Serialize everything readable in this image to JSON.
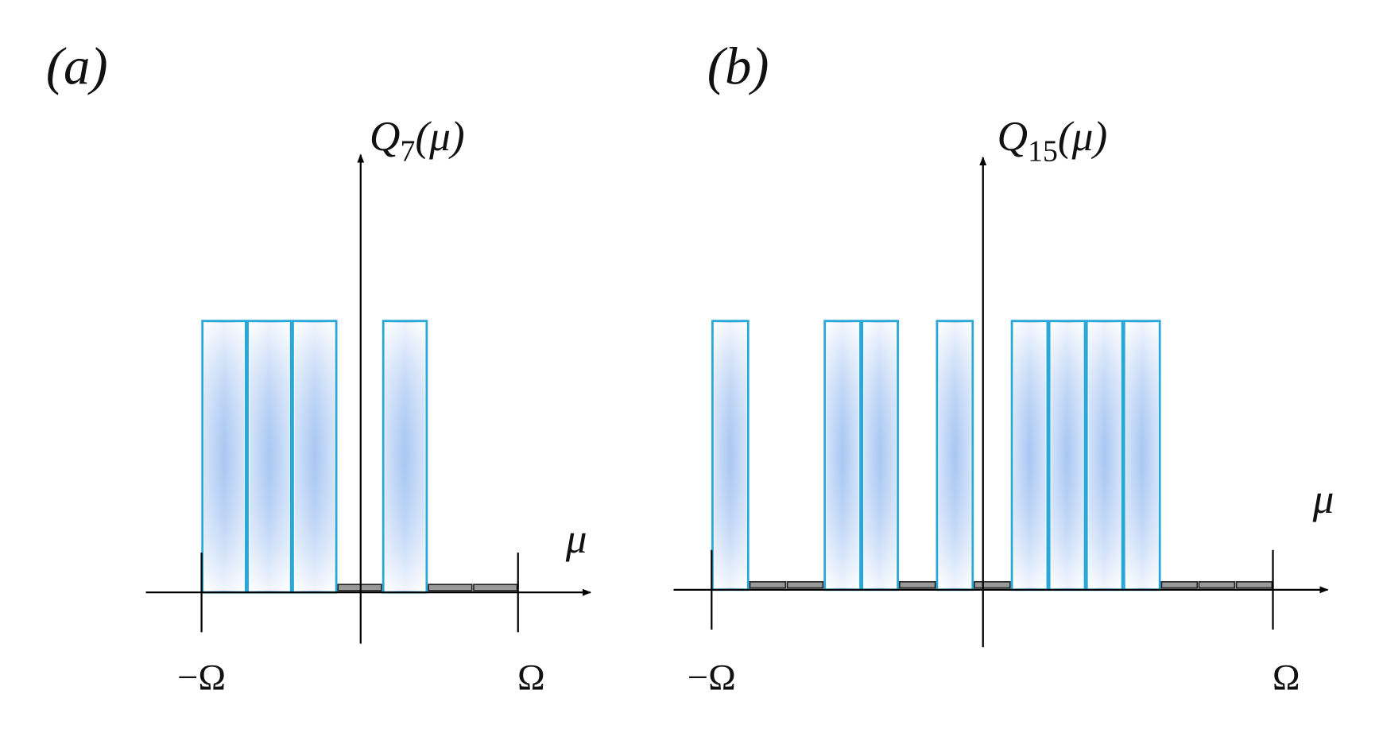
{
  "panels": [
    {
      "label": "(a)",
      "y_symbol": "Q",
      "y_subscript": "7",
      "y_argument": "(μ)",
      "x_label": "μ",
      "left_end": "−Ω",
      "right_end": "Ω",
      "slots": [
        1,
        1,
        1,
        0,
        1,
        0,
        0
      ]
    },
    {
      "label": "(b)",
      "y_symbol": "Q",
      "y_subscript": "15",
      "y_argument": "(μ)",
      "x_label": "μ",
      "left_end": "−Ω",
      "right_end": "Ω",
      "slots": [
        1,
        0,
        0,
        1,
        1,
        0,
        1,
        0,
        1,
        1,
        1,
        1,
        0,
        0,
        0
      ]
    }
  ]
}
